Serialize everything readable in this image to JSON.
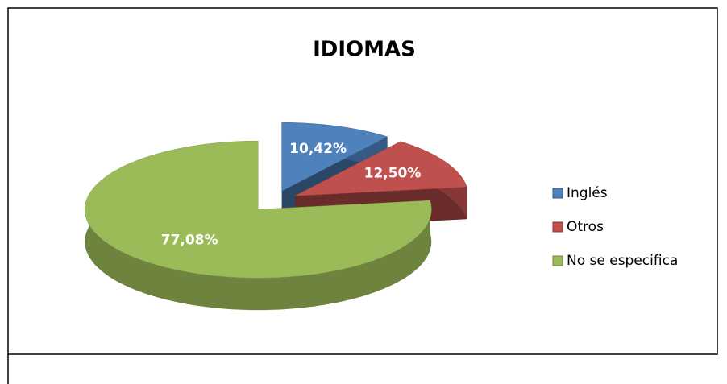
{
  "chart_data": {
    "type": "pie",
    "title": "IDIOMAS",
    "categories": [
      "Inglés",
      "Otros",
      "No se especifica"
    ],
    "values": [
      10.42,
      12.5,
      77.08
    ],
    "value_labels": [
      "10,42%",
      "12,50%",
      "77,08%"
    ],
    "colors": [
      "#4f81bd",
      "#c0504d",
      "#9bbb59"
    ],
    "legend": "right"
  }
}
